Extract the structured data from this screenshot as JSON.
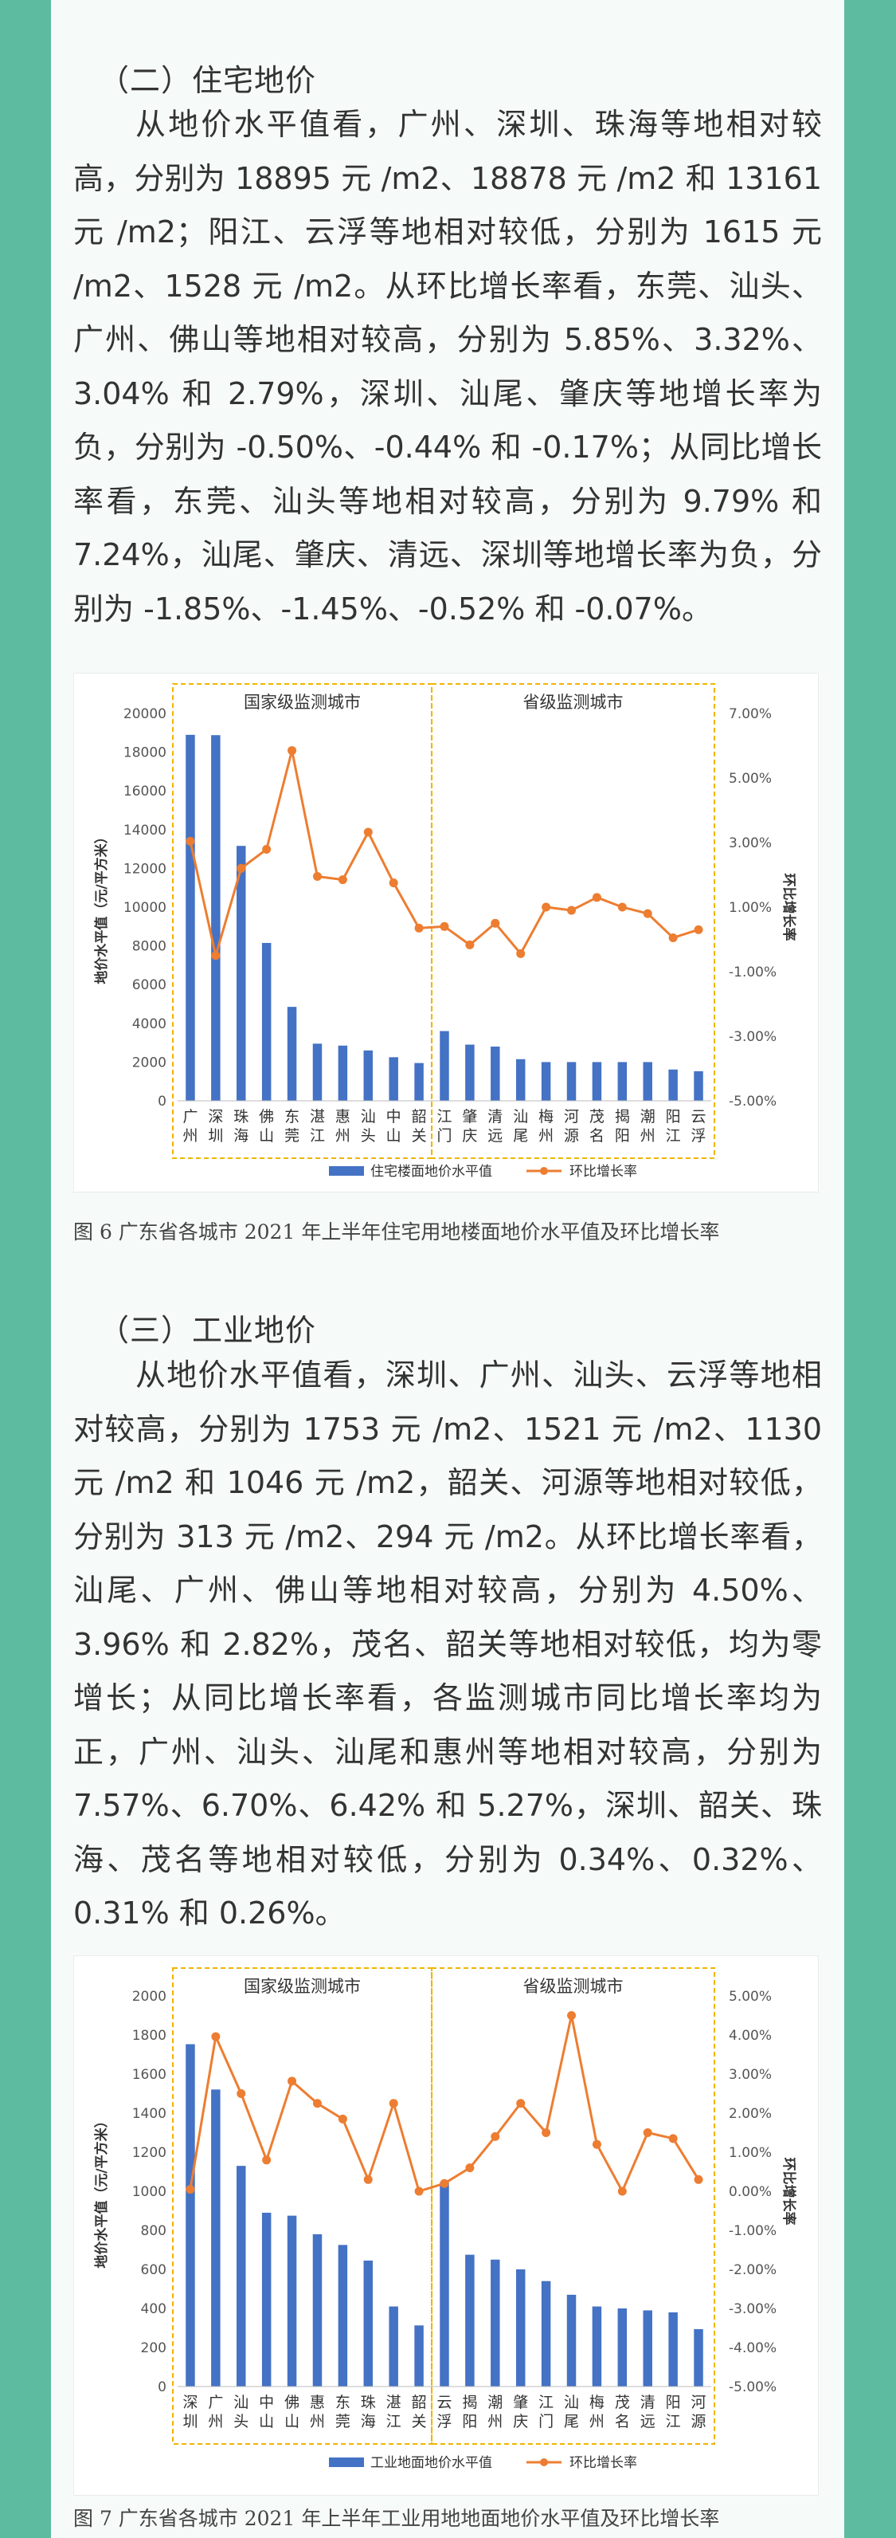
{
  "section2": {
    "heading": "（二）住宅地价",
    "paragraph": "从地价水平值看，广州、深圳、珠海等地相对较高，分别为 18895 元 /m2、18878 元 /m2 和 13161 元 /m2；阳江、云浮等地相对较低，分别为 1615 元 /m2、1528 元 /m2。从环比增长率看，东莞、汕头、广州、佛山等地相对较高，分别为 5.85%、3.32%、3.04% 和 2.79%，深圳、汕尾、肇庆等地增长率为负，分别为 -0.50%、-0.44% 和 -0.17%；从同比增长率看，东莞、汕头等地相对较高，分别为 9.79% 和 7.24%，汕尾、肇庆、清远、深圳等地增长率为负，分别为 -1.85%、-1.45%、-0.52% 和 -0.07%。"
  },
  "section3": {
    "heading": "（三）工业地价",
    "paragraph": "从地价水平值看，深圳、广州、汕头、云浮等地相对较高，分别为 1753 元 /m2、1521 元 /m2、1130 元 /m2 和 1046 元 /m2，韶关、河源等地相对较低，分别为 313 元 /m2、294 元 /m2。从环比增长率看，汕尾、广州、佛山等地相对较高，分别为 4.50%、3.96% 和 2.82%，茂名、韶关等地相对较低，均为零增长；从同比增长率看，各监测城市同比增长率均为正，广州、汕头、汕尾和惠州等地相对较高，分别为 7.57%、6.70%、6.42% 和 5.27%，深圳、韶关、珠海、茂名等地相对较低，分别为 0.34%、0.32%、0.31% 和 0.26%。"
  },
  "captions": {
    "fig6": "图 6 广东省各城市 2021 年上半年住宅用地楼面地价水平值及环比增长率",
    "fig7": "图 7 广东省各城市 2021 年上半年工业用地地面地价水平值及环比增长率"
  },
  "colors": {
    "bar": "#4472c4",
    "line": "#ed7d31",
    "group_border": "#f0b400",
    "background": "#5dbb9f"
  },
  "chart_data": [
    {
      "type": "bar",
      "group_labels": [
        "国家级监测城市",
        "省级监测城市"
      ],
      "ylabel": "地价水平值（元/平方米）",
      "y2label": "环比增长率",
      "ylim": [
        0,
        20000
      ],
      "yticks": [
        "0",
        "2000",
        "4000",
        "6000",
        "8000",
        "10000",
        "12000",
        "14000",
        "16000",
        "18000",
        "20000"
      ],
      "y2lim": [
        -5,
        7
      ],
      "y2ticks": [
        "-5.00%",
        "-3.00%",
        "-1.00%",
        "1.00%",
        "3.00%",
        "5.00%",
        "7.00%"
      ],
      "categories": [
        "广州",
        "深圳",
        "珠海",
        "佛山",
        "东莞",
        "湛江",
        "惠州",
        "汕头",
        "中山",
        "韶关",
        "江门",
        "肇庆",
        "清远",
        "汕尾",
        "梅州",
        "河源",
        "茂名",
        "揭阳",
        "潮州",
        "阳江",
        "云浮"
      ],
      "national_count": 10,
      "series": [
        {
          "name": "住宅楼面地价水平值",
          "type": "bar",
          "values": [
            18895,
            18878,
            13161,
            8150,
            4850,
            2950,
            2850,
            2600,
            2250,
            1950,
            3600,
            2900,
            2800,
            2150,
            2000,
            2000,
            2000,
            2000,
            2000,
            1615,
            1528
          ]
        },
        {
          "name": "环比增长率",
          "type": "line",
          "axis": "right",
          "values": [
            3.04,
            -0.5,
            2.2,
            2.79,
            5.85,
            1.95,
            1.85,
            3.32,
            1.75,
            0.35,
            0.4,
            -0.17,
            0.5,
            -0.44,
            1.0,
            0.9,
            1.3,
            1.0,
            0.8,
            0.05,
            0.3
          ]
        }
      ],
      "legend": "bottom"
    },
    {
      "type": "bar",
      "group_labels": [
        "国家级监测城市",
        "省级监测城市"
      ],
      "ylabel": "地价水平值（元/平方米）",
      "y2label": "环比增长率",
      "ylim": [
        0,
        2000
      ],
      "yticks": [
        "0",
        "200",
        "400",
        "600",
        "800",
        "1000",
        "1200",
        "1400",
        "1600",
        "1800",
        "2000"
      ],
      "y2lim": [
        -5,
        5
      ],
      "y2ticks": [
        "-5.00%",
        "-4.00%",
        "-3.00%",
        "-2.00%",
        "-1.00%",
        "0.00%",
        "1.00%",
        "2.00%",
        "3.00%",
        "4.00%",
        "5.00%"
      ],
      "categories": [
        "深圳",
        "广州",
        "汕头",
        "中山",
        "佛山",
        "惠州",
        "东莞",
        "珠海",
        "湛江",
        "韶关",
        "云浮",
        "揭阳",
        "潮州",
        "肇庆",
        "江门",
        "汕尾",
        "梅州",
        "茂名",
        "清远",
        "阳江",
        "河源"
      ],
      "national_count": 10,
      "series": [
        {
          "name": "工业地面地价水平值",
          "type": "bar",
          "values": [
            1753,
            1521,
            1130,
            890,
            875,
            780,
            725,
            645,
            410,
            313,
            1046,
            675,
            650,
            600,
            540,
            470,
            410,
            400,
            390,
            380,
            294
          ]
        },
        {
          "name": "环比增长率",
          "type": "line",
          "axis": "right",
          "values": [
            0.05,
            3.96,
            2.5,
            0.8,
            2.82,
            2.25,
            1.85,
            0.3,
            2.25,
            0.0,
            0.2,
            0.6,
            1.4,
            2.25,
            1.5,
            4.5,
            1.2,
            0.0,
            1.5,
            1.35,
            0.3
          ]
        }
      ],
      "legend": "bottom"
    }
  ]
}
